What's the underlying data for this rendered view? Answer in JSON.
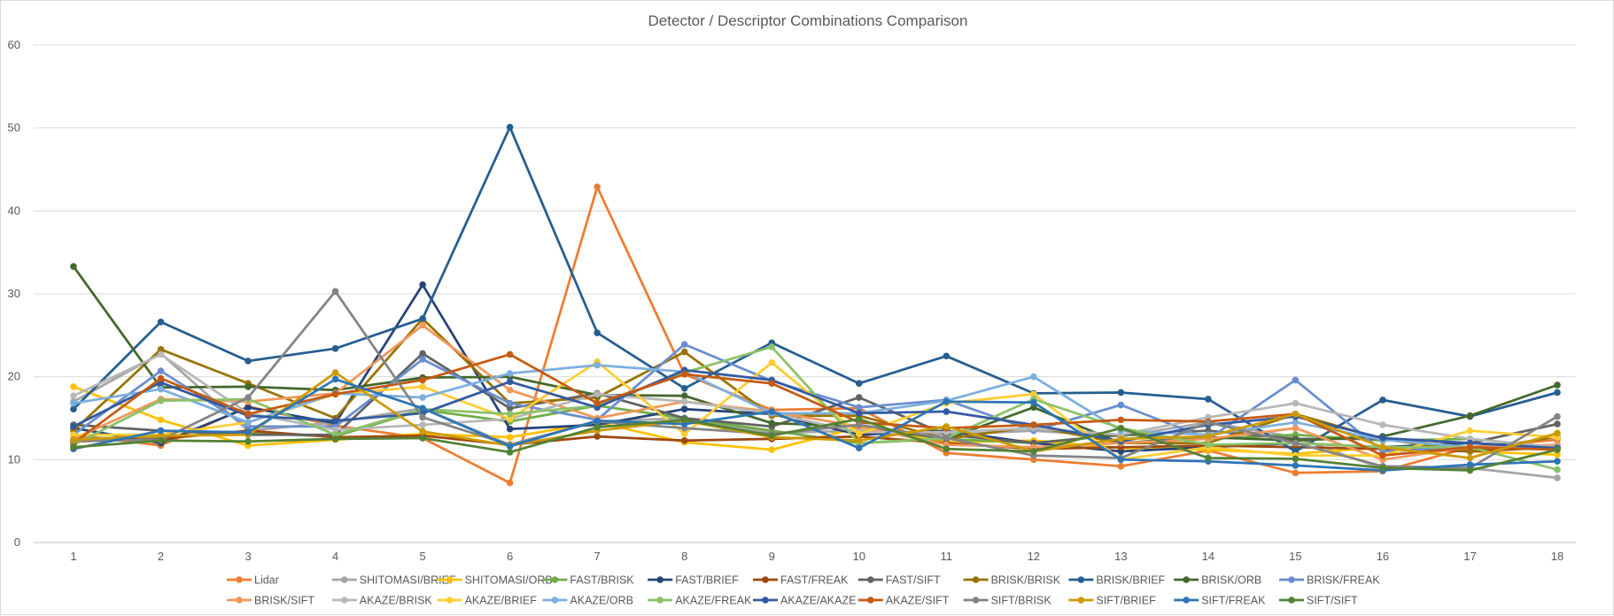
{
  "chart_data": {
    "type": "line",
    "title": "Detector / Descriptor Combinations Comparison",
    "xlabel": "",
    "ylabel": "",
    "x": [
      1,
      2,
      3,
      4,
      5,
      6,
      7,
      8,
      9,
      10,
      11,
      12,
      13,
      14,
      15,
      16,
      17,
      18
    ],
    "ylim": [
      0,
      60
    ],
    "yticks": [
      0,
      10,
      20,
      30,
      40,
      50,
      60
    ],
    "grid": "horizontal",
    "legend_position": "bottom",
    "series": [
      {
        "name": "Lidar",
        "color": "#ED7D31",
        "values": [
          13.0,
          11.7,
          16.4,
          14.1,
          12.6,
          7.2,
          42.9,
          20.3,
          16.0,
          16.2,
          10.8,
          10.0,
          9.2,
          11.1,
          8.4,
          8.6,
          11.5,
          12.4
        ]
      },
      {
        "name": "SHITOMASI/BRIEF",
        "color": "#A5A5A5",
        "values": [
          17.0,
          22.8,
          13.5,
          14.5,
          16.2,
          11.8,
          14.6,
          15.0,
          13.2,
          13.5,
          13.0,
          13.5,
          12.8,
          14.5,
          12.7,
          8.9,
          9.0,
          7.8
        ]
      },
      {
        "name": "SHITOMASI/ORB",
        "color": "#FFC000",
        "values": [
          18.8,
          14.8,
          11.7,
          12.4,
          13.1,
          12.7,
          14.5,
          12.1,
          11.2,
          13.9,
          12.1,
          12.3,
          11.4,
          11.2,
          10.7,
          11.5,
          11.0,
          10.6
        ]
      },
      {
        "name": "FAST/BRISK",
        "color": "#70AD47",
        "values": [
          12.5,
          12.8,
          13.2,
          12.8,
          16.0,
          14.6,
          16.5,
          15.0,
          13.5,
          12.0,
          12.5,
          12.0,
          13.0,
          12.5,
          13.0,
          12.3,
          12.5,
          11.5
        ]
      },
      {
        "name": "FAST/BRIEF",
        "color": "#264478",
        "values": [
          13.8,
          12.0,
          16.3,
          14.4,
          31.1,
          13.7,
          14.2,
          16.1,
          15.5,
          13.0,
          13.5,
          12.0,
          11.0,
          11.5,
          12.0,
          11.5,
          12.0,
          11.5
        ]
      },
      {
        "name": "FAST/FREAK",
        "color": "#9E480E",
        "values": [
          12.2,
          12.5,
          13.5,
          12.7,
          12.9,
          11.8,
          12.8,
          12.3,
          12.5,
          12.8,
          12.0,
          11.3,
          11.5,
          11.7,
          11.5,
          11.3,
          11.0,
          11.5
        ]
      },
      {
        "name": "FAST/SIFT",
        "color": "#636363",
        "values": [
          14.2,
          13.5,
          13.0,
          13.0,
          22.8,
          16.2,
          18.0,
          15.0,
          14.0,
          17.5,
          13.0,
          12.0,
          13.0,
          13.5,
          12.5,
          12.5,
          12.0,
          14.3
        ]
      },
      {
        "name": "BRISK/BRISK",
        "color": "#997300",
        "values": [
          13.5,
          23.3,
          19.2,
          15.0,
          27.0,
          16.8,
          17.5,
          23.0,
          15.3,
          15.3,
          12.5,
          14.0,
          12.0,
          12.0,
          15.5,
          12.5,
          11.0,
          12.8
        ]
      },
      {
        "name": "BRISK/BRIEF",
        "color": "#255E91",
        "values": [
          16.1,
          26.6,
          21.9,
          23.4,
          27.0,
          50.1,
          25.3,
          18.6,
          24.1,
          19.2,
          22.5,
          18.0,
          18.1,
          17.3,
          11.0,
          17.2,
          15.2,
          18.1
        ]
      },
      {
        "name": "BRISK/ORB",
        "color": "#43682B",
        "values": [
          33.3,
          18.7,
          18.8,
          18.4,
          19.9,
          20.0,
          17.8,
          17.7,
          14.4,
          14.0,
          12.5,
          16.3,
          12.0,
          12.7,
          12.3,
          12.8,
          15.3,
          19.0
        ]
      },
      {
        "name": "BRISK/FREAK",
        "color": "#698ED0",
        "values": [
          13.0,
          20.7,
          14.0,
          14.0,
          22.1,
          16.8,
          14.8,
          23.9,
          19.5,
          16.3,
          17.2,
          13.5,
          16.6,
          12.5,
          19.6,
          11.0,
          11.5,
          11.6
        ]
      },
      {
        "name": "BRISK/SIFT",
        "color": "#F1975A",
        "values": [
          12.5,
          17.3,
          17.0,
          18.0,
          26.2,
          18.4,
          15.0,
          17.0,
          15.8,
          14.0,
          11.8,
          11.5,
          12.0,
          12.5,
          13.8,
          10.0,
          11.5,
          11.8
        ]
      },
      {
        "name": "AKAZE/BRISK",
        "color": "#B7B7B7",
        "values": [
          17.7,
          22.7,
          15.6,
          13.6,
          14.2,
          14.9,
          17.9,
          17.0,
          15.6,
          13.3,
          13.3,
          13.8,
          13.0,
          15.1,
          16.8,
          14.2,
          12.5,
          11.5
        ]
      },
      {
        "name": "AKAZE/BRIEF",
        "color": "#FFCD33",
        "values": [
          13.0,
          13.0,
          14.5,
          17.9,
          18.8,
          14.9,
          21.8,
          13.1,
          21.7,
          13.1,
          16.8,
          17.9,
          10.0,
          11.5,
          10.5,
          10.5,
          13.5,
          12.7
        ]
      },
      {
        "name": "AKAZE/ORB",
        "color": "#7CAFDD",
        "values": [
          16.8,
          18.5,
          14.5,
          18.0,
          17.5,
          20.4,
          21.4,
          20.6,
          15.6,
          15.6,
          17.1,
          20.0,
          13.5,
          13.0,
          14.5,
          12.4,
          11.5,
          11.3
        ]
      },
      {
        "name": "AKAZE/FREAK",
        "color": "#8CC168",
        "values": [
          11.8,
          17.1,
          17.3,
          13.0,
          16.1,
          15.5,
          16.5,
          20.5,
          23.6,
          12.0,
          12.6,
          17.3,
          13.8,
          11.8,
          12.0,
          11.5,
          11.5,
          8.8
        ]
      },
      {
        "name": "AKAZE/AKAZE",
        "color": "#335AA1",
        "values": [
          14.0,
          19.3,
          15.3,
          14.7,
          15.6,
          19.4,
          16.3,
          20.8,
          19.6,
          15.6,
          15.8,
          14.2,
          12.2,
          14.2,
          15.2,
          12.6,
          12.0,
          11.4
        ]
      },
      {
        "name": "AKAZE/SIFT",
        "color": "#C55A11",
        "values": [
          12.0,
          19.8,
          15.5,
          17.9,
          19.6,
          22.7,
          16.8,
          20.3,
          19.2,
          14.5,
          13.8,
          14.2,
          14.8,
          14.6,
          15.5,
          10.5,
          11.5,
          11.2
        ]
      },
      {
        "name": "SIFT/BRISK",
        "color": "#848484",
        "values": [
          12.3,
          12.4,
          17.5,
          30.3,
          15.1,
          11.8,
          14.6,
          13.8,
          13.1,
          14.2,
          12.6,
          10.5,
          10.2,
          14.5,
          12.0,
          9.2,
          9.0,
          15.2
        ]
      },
      {
        "name": "SIFT/BRIEF",
        "color": "#CC9A00",
        "values": [
          12.4,
          12.9,
          13.0,
          20.5,
          13.4,
          11.7,
          13.5,
          14.7,
          12.7,
          12.3,
          14.0,
          11.0,
          12.5,
          12.8,
          15.5,
          11.5,
          10.2,
          13.2
        ]
      },
      {
        "name": "SIFT/FREAK",
        "color": "#2E75B6",
        "values": [
          11.3,
          13.5,
          13.3,
          19.7,
          16.2,
          11.6,
          14.7,
          14.3,
          15.8,
          11.4,
          17.0,
          16.9,
          10.0,
          9.8,
          9.3,
          8.7,
          9.4,
          9.8
        ]
      },
      {
        "name": "SIFT/SIFT",
        "color": "#548235",
        "values": [
          11.5,
          12.3,
          12.2,
          12.5,
          12.6,
          10.9,
          13.9,
          14.8,
          12.9,
          14.9,
          11.3,
          11.0,
          13.8,
          10.2,
          10.1,
          9.0,
          8.7,
          11.2
        ]
      }
    ]
  }
}
